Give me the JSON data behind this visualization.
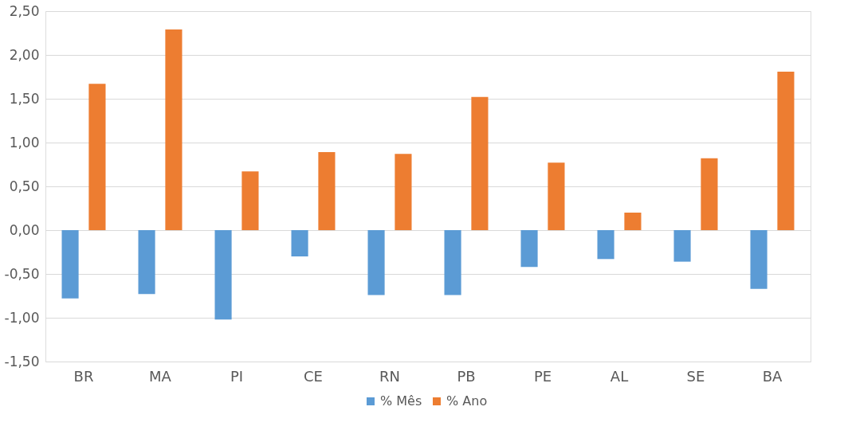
{
  "chart_data": {
    "type": "bar",
    "categories": [
      "BR",
      "MA",
      "PI",
      "CE",
      "RN",
      "PB",
      "PE",
      "AL",
      "SE",
      "BA"
    ],
    "series": [
      {
        "name": "% Mês",
        "color": "#5b9bd5",
        "values": [
          -0.78,
          -0.73,
          -1.02,
          -0.3,
          -0.74,
          -0.74,
          -0.42,
          -0.33,
          -0.36,
          -0.67
        ]
      },
      {
        "name": "% Ano",
        "color": "#ed7d31",
        "values": [
          1.67,
          2.29,
          0.67,
          0.89,
          0.87,
          1.52,
          0.77,
          0.2,
          0.82,
          1.81
        ]
      }
    ],
    "ylim": [
      -1.5,
      2.5
    ],
    "yticks": [
      {
        "value": -1.5,
        "label": "-1,50"
      },
      {
        "value": -1.0,
        "label": "-1,00"
      },
      {
        "value": -0.5,
        "label": "-0,50"
      },
      {
        "value": 0,
        "label": "0,00"
      },
      {
        "value": 0.5,
        "label": "0,50"
      },
      {
        "value": 1.0,
        "label": "1,00"
      },
      {
        "value": 1.5,
        "label": "1,50"
      },
      {
        "value": 2.0,
        "label": "2,00"
      },
      {
        "value": 2.5,
        "label": "2,50"
      }
    ],
    "grid": "y",
    "legend": "bottom"
  }
}
